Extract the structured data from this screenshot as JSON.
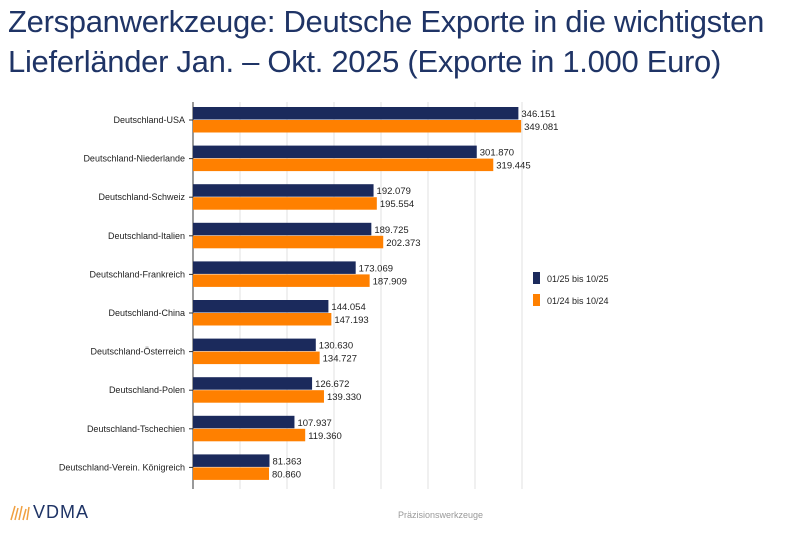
{
  "chart_data": {
    "type": "bar",
    "orientation": "horizontal",
    "title": "Zerspanwerkzeuge: Deutsche Exporte in die wichtigsten Lieferländer Jan. – Okt. 2025 (Exporte in 1.000 Euro)",
    "title_lines": [
      "Zerspanwerkzeuge: Deutsche Exporte in die wichtigsten",
      "Lieferländer Jan. – Okt. 2025 (Exporte in 1.000 Euro)"
    ],
    "categories": [
      "Deutschland-USA",
      "Deutschland-Niederlande",
      "Deutschland-Schweiz",
      "Deutschland-Italien",
      "Deutschland-Frankreich",
      "Deutschland-China",
      "Deutschland-Österreich",
      "Deutschland-Polen",
      "Deutschland-Tschechien",
      "Deutschland-Verein. Königreich"
    ],
    "series": [
      {
        "name": "01/25 bis 10/25",
        "color": "#1b2a5c",
        "values": [
          346151,
          301870,
          192079,
          189725,
          173069,
          144054,
          130630,
          126672,
          107937,
          81363
        ],
        "labels": [
          "346.151",
          "301.870",
          "192.079",
          "189.725",
          "173.069",
          "144.054",
          "130.630",
          "126.672",
          "107.937",
          "81.363"
        ]
      },
      {
        "name": "01/24 bis 10/24",
        "color": "#ff8000",
        "values": [
          349081,
          319445,
          195554,
          202373,
          187909,
          147193,
          134727,
          139330,
          119360,
          80860
        ],
        "labels": [
          "349.081",
          "319.445",
          "195.554",
          "202.373",
          "187.909",
          "147.193",
          "134.727",
          "139.330",
          "119.360",
          "80.860"
        ]
      }
    ],
    "xlim": [
      0,
      350000
    ],
    "grid": true,
    "legend_position": "right"
  },
  "footer": {
    "caption": "Präzisionswerkzeuge",
    "logo": "VDMA"
  }
}
